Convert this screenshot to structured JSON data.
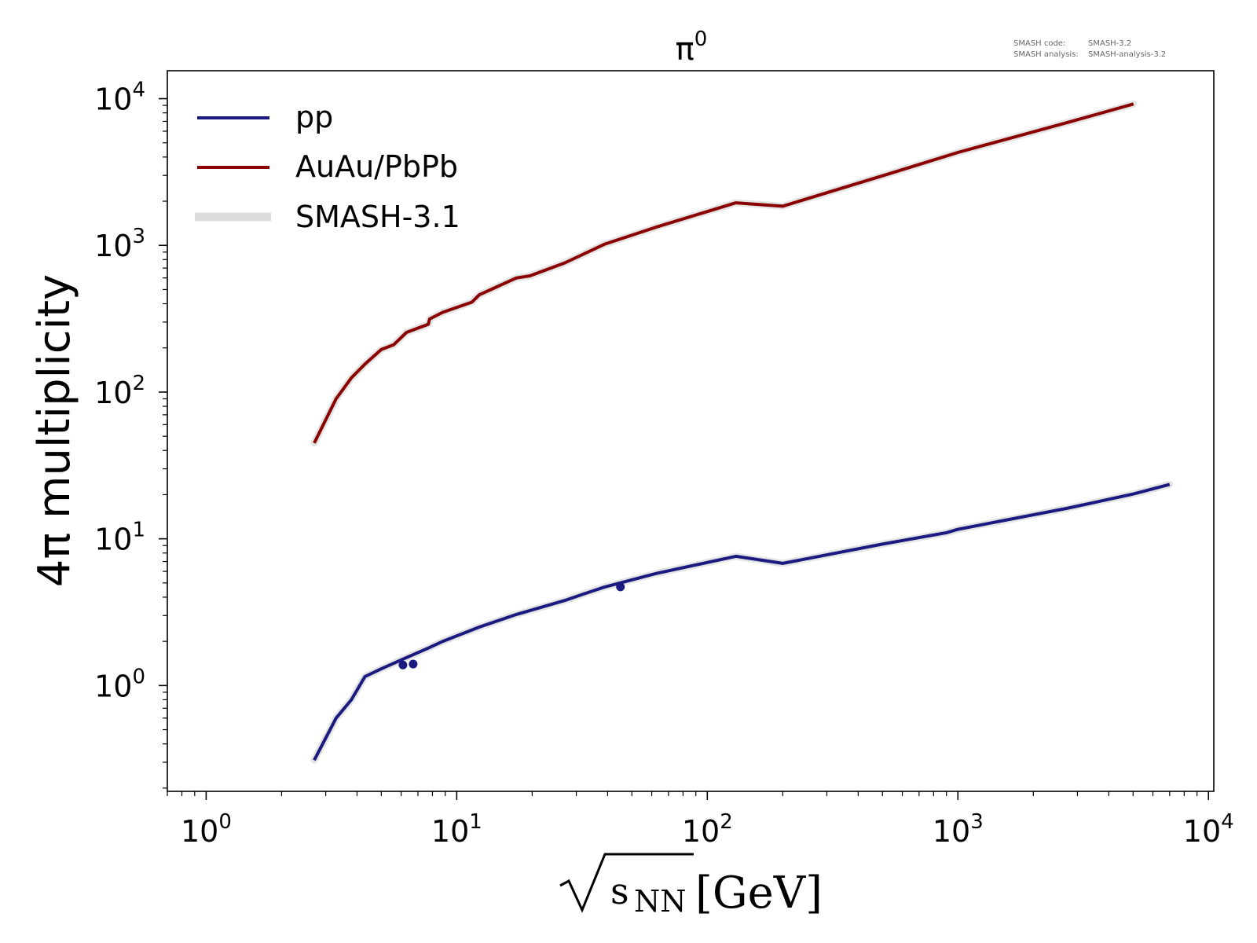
{
  "chart_data": {
    "type": "line",
    "title": "π⁰",
    "title_base": "π",
    "title_sup": "0",
    "xlabel": "[GeV]",
    "xlabel_radicand": "s",
    "xlabel_sub": "NN",
    "ylabel": "4π multiplicity",
    "xscale": "log",
    "yscale": "log",
    "xlim": [
      0.7,
      10500
    ],
    "ylim": [
      0.19,
      15500
    ],
    "grid": false,
    "legend_position": "top-left",
    "x_ticks": [
      {
        "value": 1,
        "base": "10",
        "exp": "0"
      },
      {
        "value": 10,
        "base": "10",
        "exp": "1"
      },
      {
        "value": 100,
        "base": "10",
        "exp": "2"
      },
      {
        "value": 1000,
        "base": "10",
        "exp": "3"
      },
      {
        "value": 10000,
        "base": "10",
        "exp": "4"
      }
    ],
    "y_ticks": [
      {
        "value": 1,
        "base": "10",
        "exp": "0"
      },
      {
        "value": 10,
        "base": "10",
        "exp": "1"
      },
      {
        "value": 100,
        "base": "10",
        "exp": "2"
      },
      {
        "value": 1000,
        "base": "10",
        "exp": "3"
      },
      {
        "value": 10000,
        "base": "10",
        "exp": "4"
      }
    ],
    "series": [
      {
        "name": "pp",
        "color": "#1a1a80",
        "x": [
          2.7,
          3.3,
          3.8,
          4.3,
          5.0,
          6.3,
          7.7,
          8.8,
          12.3,
          17.3,
          27,
          32,
          39,
          62.4,
          130,
          200,
          500,
          900,
          1000,
          2760,
          5020,
          7000
        ],
        "y": [
          0.31,
          0.6,
          0.8,
          1.15,
          1.3,
          1.55,
          1.8,
          2.0,
          2.5,
          3.05,
          3.8,
          4.2,
          4.7,
          5.8,
          7.6,
          6.8,
          9.2,
          11.0,
          11.6,
          16.2,
          20.2,
          23.5
        ]
      },
      {
        "name": "AuAu/PbPb",
        "color": "#8b0000",
        "x": [
          2.7,
          3.3,
          3.8,
          4.3,
          5.0,
          5.6,
          6.3,
          7.7,
          7.8,
          8.8,
          11.5,
          12.3,
          17.3,
          19.6,
          27,
          39,
          62.4,
          130,
          200,
          500,
          1000,
          2760,
          5020
        ],
        "y": [
          45,
          90,
          125,
          155,
          195,
          210,
          255,
          290,
          315,
          350,
          410,
          460,
          600,
          620,
          760,
          1020,
          1330,
          1950,
          1850,
          2980,
          4300,
          6900,
          9200
        ]
      }
    ],
    "data_points": {
      "name": "pp",
      "color": "#1a1a80",
      "x": [
        6.1,
        6.7,
        45
      ],
      "y": [
        1.38,
        1.4,
        4.7
      ]
    },
    "legend": [
      {
        "label": "pp",
        "color": "#1a1a80",
        "kind": "line"
      },
      {
        "label": "AuAu/PbPb",
        "color": "#8b0000",
        "kind": "line"
      },
      {
        "label": "SMASH-3.1",
        "color": "#dddddd",
        "kind": "band"
      }
    ],
    "band_color": "#dddddd"
  },
  "annotation": {
    "line1_label": "SMASH code:",
    "line1_value": "SMASH-3.2",
    "line2_label": "SMASH analysis:",
    "line2_value": "SMASH-analysis-3.2"
  }
}
